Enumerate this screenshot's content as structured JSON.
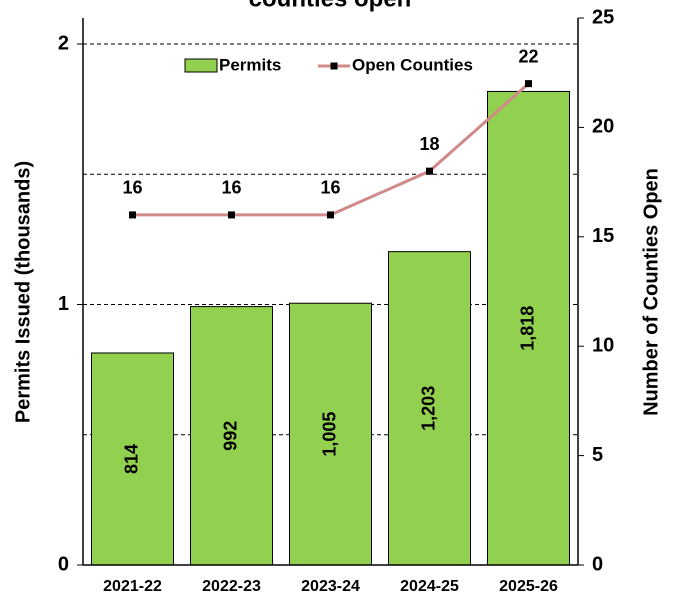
{
  "chart_data": {
    "type": "bar-line",
    "title": "counties open",
    "categories": [
      "2021-22",
      "2022-23",
      "2023-24",
      "2024-25",
      "2025-26"
    ],
    "series": [
      {
        "name": "Permits",
        "type": "bar",
        "color": "#92d050",
        "values": [
          0.814,
          0.992,
          1.005,
          1.203,
          1.818
        ],
        "value_labels": [
          "814",
          "992",
          "1,005",
          "1,203",
          "1,818"
        ]
      },
      {
        "name": "Open Counties",
        "type": "line",
        "axis": "y2",
        "color": "#d08a8a",
        "values": [
          16,
          16,
          16,
          18,
          22
        ]
      }
    ],
    "ylabel": "Permits Issued (thousands)",
    "y2label": "Number of Counties Open",
    "ylim": [
      0,
      2.1
    ],
    "yticks": [
      0,
      1,
      2
    ],
    "minor_yticks": [
      0.5,
      1.5
    ],
    "y2lim": [
      0,
      25
    ],
    "y2ticks": [
      0,
      5,
      10,
      15,
      20,
      25
    ],
    "grid": true,
    "legend": "top"
  }
}
